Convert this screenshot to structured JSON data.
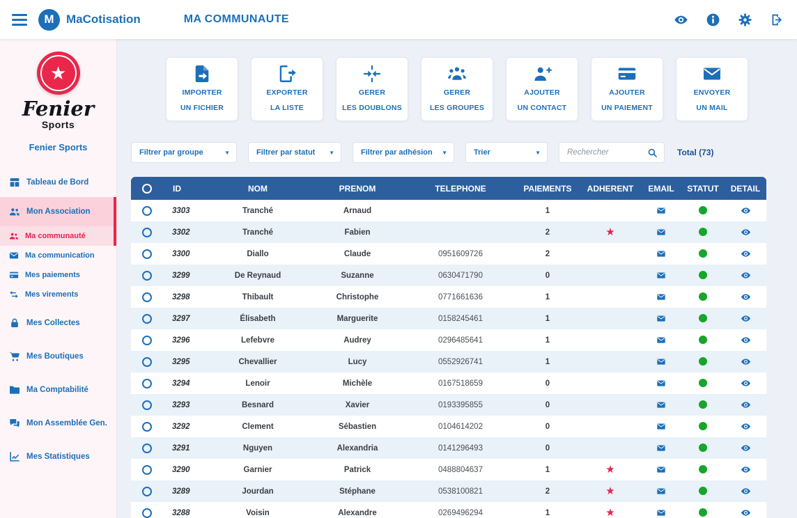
{
  "colors": {
    "primary": "#1d6fb8",
    "table_header": "#2d5f9f",
    "row_alt": "#e9f1f9",
    "success_green": "#17a52b",
    "star_red": "#e4234e",
    "active_pink": "#fbd2dc",
    "active_pink_light": "#fadfe7",
    "sidebar_bg": "#fdf5f7",
    "content_bg": "#edf1f7",
    "logo_red": "#e8274b"
  },
  "topbar": {
    "brand": "MaCotisation",
    "brand_initial": "M",
    "page_title": "MA COMMUNAUTE",
    "icons": [
      "eye-icon",
      "info-icon",
      "gear-icon",
      "logout-icon"
    ]
  },
  "sidebar": {
    "logo_script": "Fenier",
    "logo_sub": "Sports",
    "logo_star_glyph": "★",
    "org_name": "Fenier Sports",
    "menu": [
      {
        "label": "Tableau de Bord",
        "icon": "dashboard-icon"
      },
      {
        "label": "Mon Association",
        "icon": "people-group-icon",
        "state": "active"
      },
      {
        "label": "Ma communauté",
        "icon": "community-icon",
        "sub": true,
        "state": "active-sub"
      },
      {
        "label": "Ma communication",
        "icon": "envelope-icon",
        "sub": true
      },
      {
        "label": "Mes paiements",
        "icon": "card-icon",
        "sub": true
      },
      {
        "label": "Mes virements",
        "icon": "transfer-icon",
        "sub": true
      },
      {
        "label": "Mes Collectes",
        "icon": "lock-icon"
      },
      {
        "label": "Mes Boutiques",
        "icon": "cart-icon"
      },
      {
        "label": "Ma Comptabilité",
        "icon": "folder-icon"
      },
      {
        "label": "Mon Assemblée Gen.",
        "icon": "chat-icon"
      },
      {
        "label": "Mes Statistiques",
        "icon": "chart-icon"
      }
    ]
  },
  "actions": [
    {
      "label_top": "IMPORTER",
      "label_bottom": "UN FICHIER",
      "icon": "import-file-icon"
    },
    {
      "label_top": "EXPORTER",
      "label_bottom": "LA LISTE",
      "icon": "export-list-icon"
    },
    {
      "label_top": "GERER",
      "label_bottom": "LES DOUBLONS",
      "icon": "merge-icon"
    },
    {
      "label_top": "GERER",
      "label_bottom": "LES GROUPES",
      "icon": "groups-icon"
    },
    {
      "label_top": "AJOUTER",
      "label_bottom": "UN CONTACT",
      "icon": "add-contact-icon"
    },
    {
      "label_top": "AJOUTER",
      "label_bottom": "UN PAIEMENT",
      "icon": "add-payment-icon"
    },
    {
      "label_top": "ENVOYER",
      "label_bottom": "UN MAIL",
      "icon": "send-mail-icon"
    }
  ],
  "filters": {
    "dropdowns": [
      "Filtrer par groupe",
      "Filtrer par statut",
      "Filtrer par adhésion",
      "Trier"
    ],
    "search_placeholder": "Rechercher",
    "total_label": "Total (73)"
  },
  "table": {
    "headers": [
      "ID",
      "NOM",
      "PRENOM",
      "TELEPHONE",
      "PAIEMENTS",
      "ADHERENT",
      "EMAIL",
      "STATUT",
      "DETAIL"
    ],
    "star_glyph": "★",
    "rows": [
      {
        "id": "3303",
        "nom": "Tranché",
        "prenom": "Arnaud",
        "tel": "",
        "paiements": "1",
        "adherent": false
      },
      {
        "id": "3302",
        "nom": "Tranché",
        "prenom": "Fabien",
        "tel": "",
        "paiements": "2",
        "adherent": true
      },
      {
        "id": "3300",
        "nom": "Diallo",
        "prenom": "Claude",
        "tel": "0951609726",
        "paiements": "2",
        "adherent": false
      },
      {
        "id": "3299",
        "nom": "De Reynaud",
        "prenom": "Suzanne",
        "tel": "0630471790",
        "paiements": "0",
        "adherent": false
      },
      {
        "id": "3298",
        "nom": "Thibault",
        "prenom": "Christophe",
        "tel": "0771661636",
        "paiements": "1",
        "adherent": false
      },
      {
        "id": "3297",
        "nom": "Élisabeth",
        "prenom": "Marguerite",
        "tel": "0158245461",
        "paiements": "1",
        "adherent": false
      },
      {
        "id": "3296",
        "nom": "Lefebvre",
        "prenom": "Audrey",
        "tel": "0296485641",
        "paiements": "1",
        "adherent": false
      },
      {
        "id": "3295",
        "nom": "Chevallier",
        "prenom": "Lucy",
        "tel": "0552926741",
        "paiements": "1",
        "adherent": false
      },
      {
        "id": "3294",
        "nom": "Lenoir",
        "prenom": "Michèle",
        "tel": "0167518659",
        "paiements": "0",
        "adherent": false
      },
      {
        "id": "3293",
        "nom": "Besnard",
        "prenom": "Xavier",
        "tel": "0193395855",
        "paiements": "0",
        "adherent": false
      },
      {
        "id": "3292",
        "nom": "Clement",
        "prenom": "Sébastien",
        "tel": "0104614202",
        "paiements": "0",
        "adherent": false
      },
      {
        "id": "3291",
        "nom": "Nguyen",
        "prenom": "Alexandria",
        "tel": "0141296493",
        "paiements": "0",
        "adherent": false
      },
      {
        "id": "3290",
        "nom": "Garnier",
        "prenom": "Patrick",
        "tel": "0488804637",
        "paiements": "1",
        "adherent": true
      },
      {
        "id": "3289",
        "nom": "Jourdan",
        "prenom": "Stéphane",
        "tel": "0538100821",
        "paiements": "2",
        "adherent": true
      },
      {
        "id": "3288",
        "nom": "Voisin",
        "prenom": "Alexandre",
        "tel": "0269496294",
        "paiements": "1",
        "adherent": true
      }
    ]
  }
}
